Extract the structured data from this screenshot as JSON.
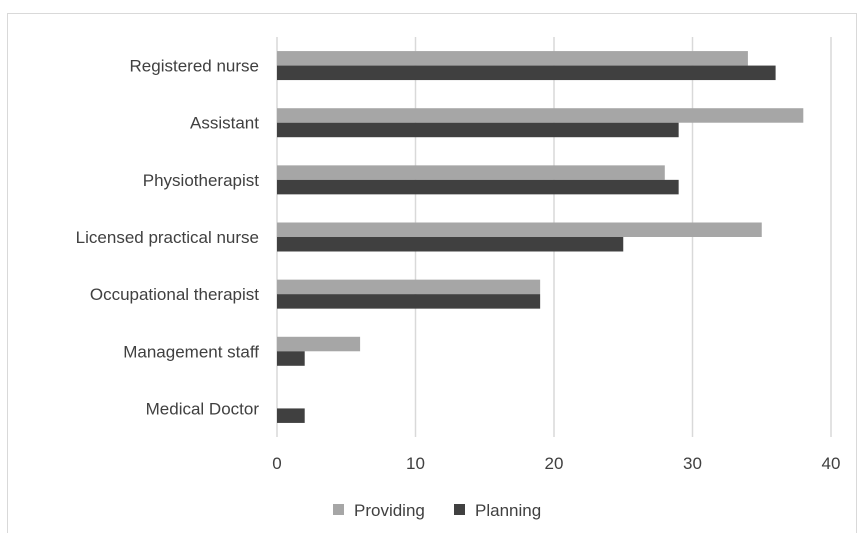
{
  "chart_data": {
    "type": "bar",
    "orientation": "horizontal",
    "categories": [
      "Registered nurse",
      "Assistant",
      "Physiotherapist",
      "Licensed practical nurse",
      "Occupational therapist",
      "Management staff",
      "Medical Doctor"
    ],
    "series": [
      {
        "name": "Providing",
        "values": [
          34,
          38,
          28,
          35,
          19,
          6,
          0
        ],
        "color": "#a6a6a6"
      },
      {
        "name": "Planning",
        "values": [
          36,
          29,
          29,
          25,
          19,
          2,
          2
        ],
        "color": "#404040"
      }
    ],
    "xlim": [
      0,
      40
    ],
    "xticks": [
      "0",
      "10",
      "20",
      "30",
      "40"
    ],
    "grid": true,
    "legend_position": "bottom"
  }
}
